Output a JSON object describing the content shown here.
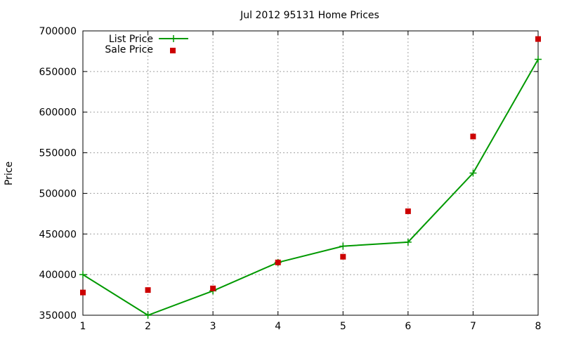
{
  "chart_data": {
    "type": "line",
    "title": "Jul 2012 95131 Home Prices",
    "xlabel": "",
    "ylabel": "Price",
    "xlim": [
      1,
      8
    ],
    "ylim": [
      350000,
      700000
    ],
    "x_ticks": [
      "1",
      "2",
      "3",
      "4",
      "5",
      "6",
      "7",
      "8"
    ],
    "y_ticks": [
      "350000",
      "400000",
      "450000",
      "500000",
      "550000",
      "600000",
      "650000",
      "700000"
    ],
    "grid": true,
    "legend_position": "top-left",
    "series": [
      {
        "name": "List Price",
        "style": "line+cross",
        "color": "#009900",
        "x": [
          1,
          2,
          3,
          4,
          5,
          6,
          7,
          8
        ],
        "values": [
          400000,
          350000,
          380000,
          415000,
          435000,
          440000,
          525000,
          665000
        ]
      },
      {
        "name": "Sale Price",
        "style": "square-points",
        "color": "#cc0000",
        "x": [
          1,
          2,
          3,
          4,
          5,
          6,
          7,
          8
        ],
        "values": [
          378000,
          381000,
          383000,
          415000,
          422000,
          478000,
          570000,
          690000
        ]
      }
    ]
  }
}
